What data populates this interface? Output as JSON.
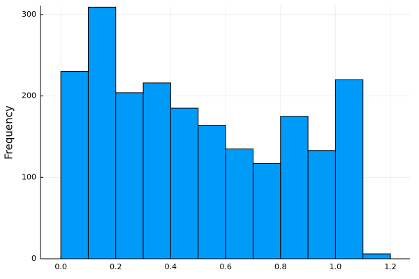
{
  "chart_data": {
    "type": "histogram",
    "ylabel": "Frequency",
    "bins": [
      0,
      0.1,
      0.2,
      0.3,
      0.4,
      0.5,
      0.6,
      0.7,
      0.8,
      0.9,
      1.0,
      1.1,
      1.2
    ],
    "values": [
      230,
      309,
      204,
      216,
      185,
      164,
      135,
      117,
      175,
      133,
      220,
      6
    ],
    "color": "#009af9",
    "xlim": [
      -0.074,
      1.271
    ],
    "ylim": [
      0,
      311
    ],
    "xticks": [
      {
        "value": 0,
        "label": "0.0"
      },
      0.2,
      0.4,
      0.6,
      0.8,
      {
        "value": 1,
        "label": "1.0"
      },
      1.2
    ],
    "yticks": [
      0,
      100,
      200,
      300
    ],
    "grid": true
  }
}
